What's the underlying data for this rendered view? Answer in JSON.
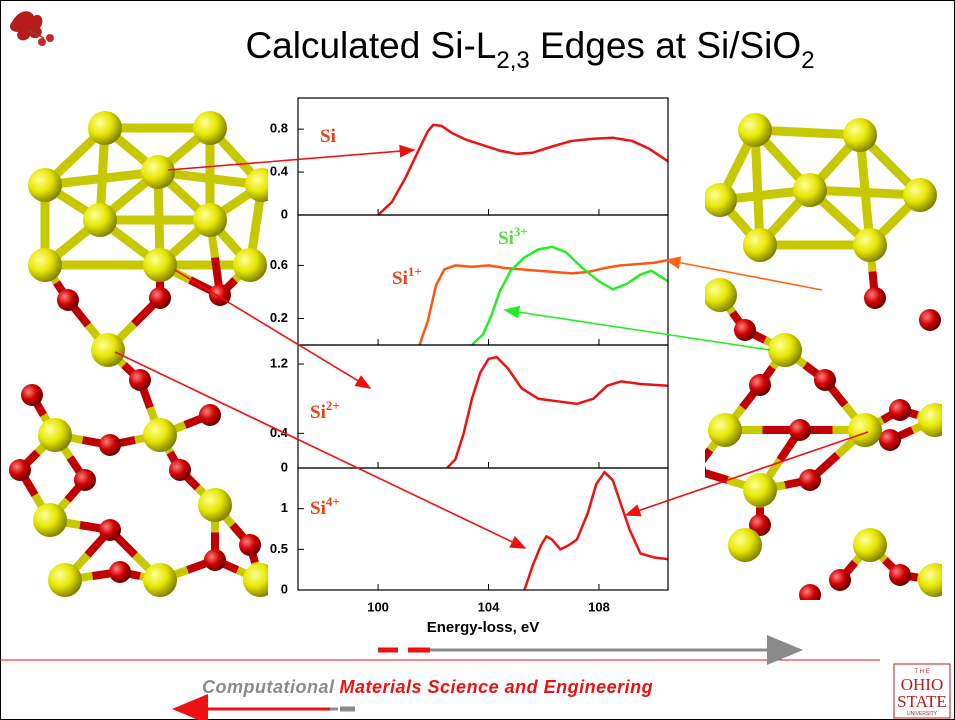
{
  "header": {
    "title": {
      "main": "Calculated Si-L",
      "sub1": "2,3",
      "middle": " Edges at Si/SiO",
      "sub2": "2"
    }
  },
  "chart_data": [
    {
      "type": "line",
      "xlim": [
        97.1,
        110.5
      ],
      "ylim": [
        0,
        1.09
      ],
      "xticks": [
        100,
        104,
        108
      ],
      "yticks": [
        0,
        0.4,
        0.8
      ],
      "series": [
        {
          "name": "Si",
          "color": "#ee1111",
          "x": [
            100,
            100.5,
            101,
            101.5,
            101.8,
            102,
            102.3,
            102.7,
            103.2,
            103.8,
            104.4,
            105,
            105.6,
            106.2,
            107,
            107.8,
            108.5,
            109.2,
            109.8,
            110.5
          ],
          "values": [
            0,
            0.12,
            0.35,
            0.62,
            0.78,
            0.84,
            0.83,
            0.76,
            0.7,
            0.65,
            0.6,
            0.57,
            0.58,
            0.63,
            0.69,
            0.71,
            0.72,
            0.69,
            0.62,
            0.5
          ]
        }
      ]
    },
    {
      "type": "line",
      "xlim": [
        97.1,
        110.5
      ],
      "ylim": [
        0,
        0.98
      ],
      "xticks": [
        100,
        104,
        108
      ],
      "yticks": [
        0.2,
        0.6
      ],
      "series": [
        {
          "name": "Si",
          "superscript": "1+",
          "color": "#ff5511",
          "x": [
            101.5,
            101.8,
            102.1,
            102.4,
            102.8,
            103.4,
            104,
            104.6,
            105.2,
            105.8,
            106.4,
            107,
            107.6,
            108.2,
            108.8,
            109.4,
            110,
            110.5
          ],
          "values": [
            0,
            0.18,
            0.45,
            0.57,
            0.6,
            0.59,
            0.6,
            0.58,
            0.57,
            0.56,
            0.55,
            0.54,
            0.55,
            0.58,
            0.6,
            0.61,
            0.62,
            0.64
          ]
        },
        {
          "name": "Si",
          "superscript": "3+",
          "color": "#22ee22",
          "x": [
            103.4,
            103.8,
            104.1,
            104.4,
            104.8,
            105.3,
            105.8,
            106.3,
            106.8,
            107.4,
            108,
            108.5,
            109,
            109.5,
            109.9,
            110.5
          ],
          "values": [
            0,
            0.08,
            0.22,
            0.4,
            0.56,
            0.66,
            0.72,
            0.74,
            0.7,
            0.58,
            0.48,
            0.42,
            0.46,
            0.53,
            0.56,
            0.48
          ]
        }
      ]
    },
    {
      "type": "line",
      "xlim": [
        97.1,
        110.5
      ],
      "ylim": [
        0,
        1.42
      ],
      "xticks": [
        100,
        104,
        108
      ],
      "yticks": [
        0,
        0.4,
        1.2
      ],
      "series": [
        {
          "name": "Si",
          "superscript": "2+",
          "color": "#ee1111",
          "x": [
            102.5,
            102.8,
            103.1,
            103.4,
            103.7,
            104,
            104.3,
            104.7,
            105.2,
            105.8,
            106.5,
            107.2,
            107.8,
            108.3,
            108.8,
            109.5,
            110.5
          ],
          "values": [
            0,
            0.1,
            0.4,
            0.8,
            1.1,
            1.26,
            1.28,
            1.15,
            0.92,
            0.8,
            0.77,
            0.74,
            0.8,
            0.95,
            1.0,
            0.97,
            0.95
          ]
        }
      ]
    },
    {
      "type": "line",
      "xlim": [
        97.1,
        110.5
      ],
      "ylim": [
        0,
        1.5
      ],
      "xticks": [
        100,
        104,
        108
      ],
      "yticks": [
        0,
        0.5,
        1
      ],
      "xlabel": "Energy-loss, eV",
      "series": [
        {
          "name": "Si",
          "superscript": "4+",
          "color": "#ee1111",
          "x": [
            105.3,
            105.6,
            105.9,
            106.1,
            106.3,
            106.6,
            106.9,
            107.2,
            107.6,
            107.9,
            108.2,
            108.5,
            108.8,
            109.1,
            109.5,
            110,
            110.5
          ],
          "values": [
            0,
            0.3,
            0.55,
            0.66,
            0.62,
            0.5,
            0.55,
            0.62,
            0.95,
            1.3,
            1.45,
            1.35,
            1.05,
            0.75,
            0.45,
            0.4,
            0.38
          ]
        }
      ]
    }
  ],
  "footer": {
    "left": "Computational",
    "right": "Materials Science and Engineering"
  },
  "logo": {
    "the": "T H E",
    "line1": "OHIO",
    "line2": "STATE",
    "line3": "UNIVERSITY"
  }
}
